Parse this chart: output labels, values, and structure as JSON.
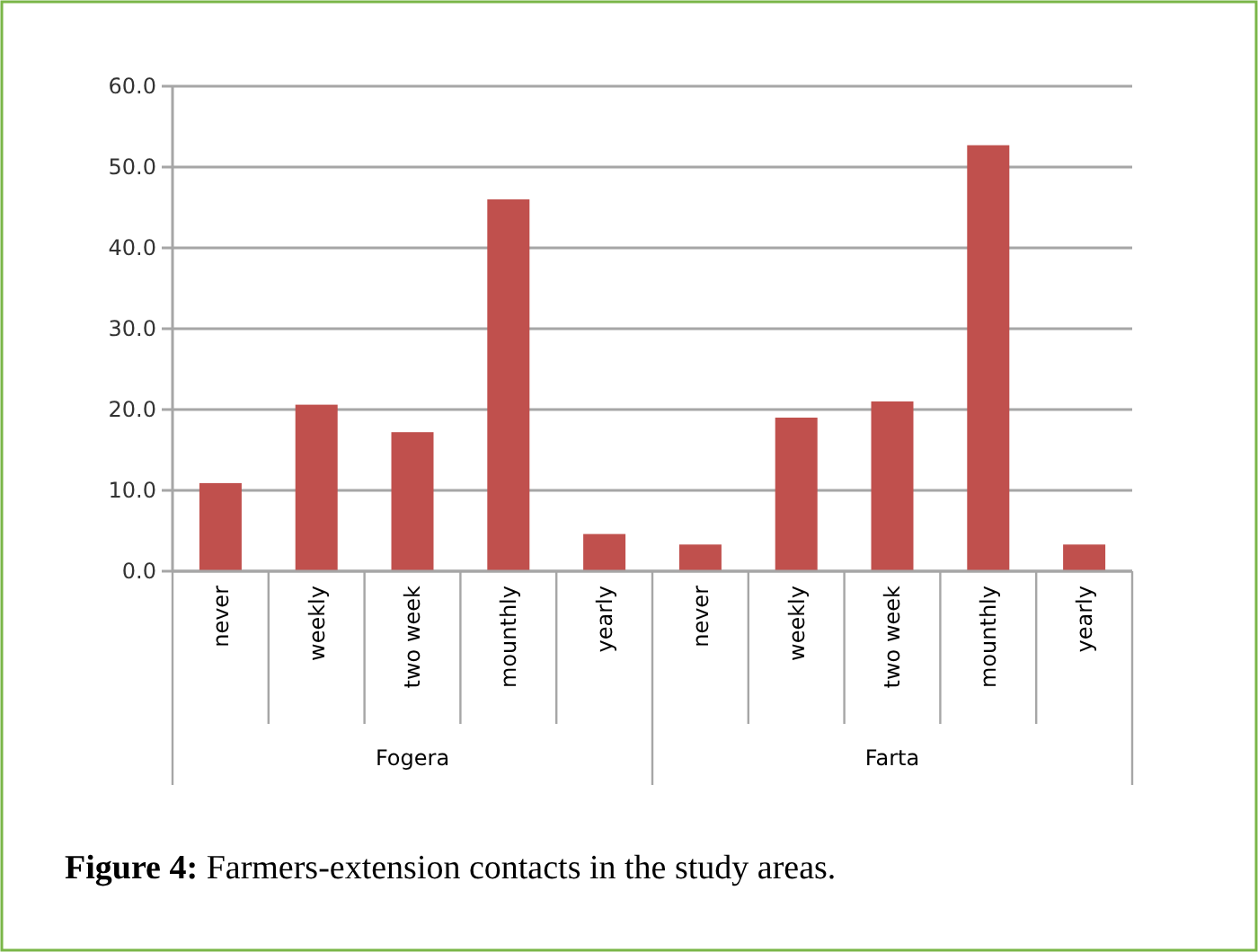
{
  "chart_data": {
    "type": "bar",
    "title": "Figure 4: Farmers-extension contacts in the study areas.",
    "categories": [
      "never",
      "weekly",
      "two week",
      "mounthly",
      "yearly",
      "never",
      "weekly",
      "two week",
      "mounthly",
      "yearly"
    ],
    "values": [
      10.9,
      20.6,
      17.2,
      46.0,
      4.6,
      3.3,
      19.0,
      21.0,
      52.7,
      3.3
    ],
    "color": "#c0504d",
    "annotations": [
      "Fogera",
      "Farta"
    ],
    "ylim": [
      0,
      60
    ],
    "yticks": [
      {
        "value": 0,
        "label": "0.0"
      },
      {
        "value": 10,
        "label": "10.0"
      },
      {
        "value": 20,
        "label": "20.0"
      },
      {
        "value": 30,
        "label": "30.0"
      },
      {
        "value": 40,
        "label": "40.0"
      },
      {
        "value": 50,
        "label": "50.0"
      },
      {
        "value": 60,
        "label": "60.0"
      }
    ],
    "grid": "y"
  }
}
